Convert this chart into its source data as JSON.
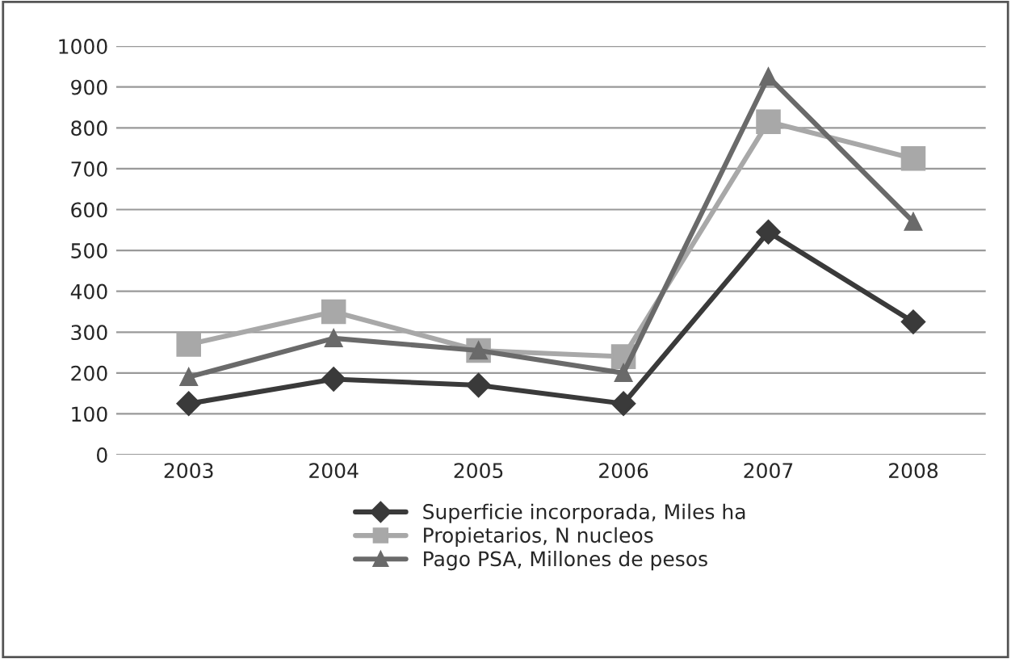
{
  "chart_data": {
    "type": "line",
    "categories": [
      "2003",
      "2004",
      "2005",
      "2006",
      "2007",
      "2008"
    ],
    "series": [
      {
        "name": "Superficie incorporada, Miles ha",
        "color": "#3a3a3a",
        "marker": "diamond",
        "values": [
          125,
          185,
          170,
          125,
          545,
          325
        ]
      },
      {
        "name": "Propietarios, N nucleos",
        "color": "#a8a8a8",
        "marker": "square",
        "values": [
          270,
          350,
          255,
          240,
          815,
          725
        ]
      },
      {
        "name": "Pago PSA, Millones de pesos",
        "color": "#6a6a6a",
        "marker": "triangle",
        "values": [
          190,
          285,
          255,
          200,
          925,
          570
        ]
      }
    ],
    "ylim": [
      0,
      1000
    ],
    "yticks": [
      0,
      100,
      200,
      300,
      400,
      500,
      600,
      700,
      800,
      900,
      1000
    ],
    "grid": "y",
    "legend": "bottom",
    "line_style": "solid"
  }
}
